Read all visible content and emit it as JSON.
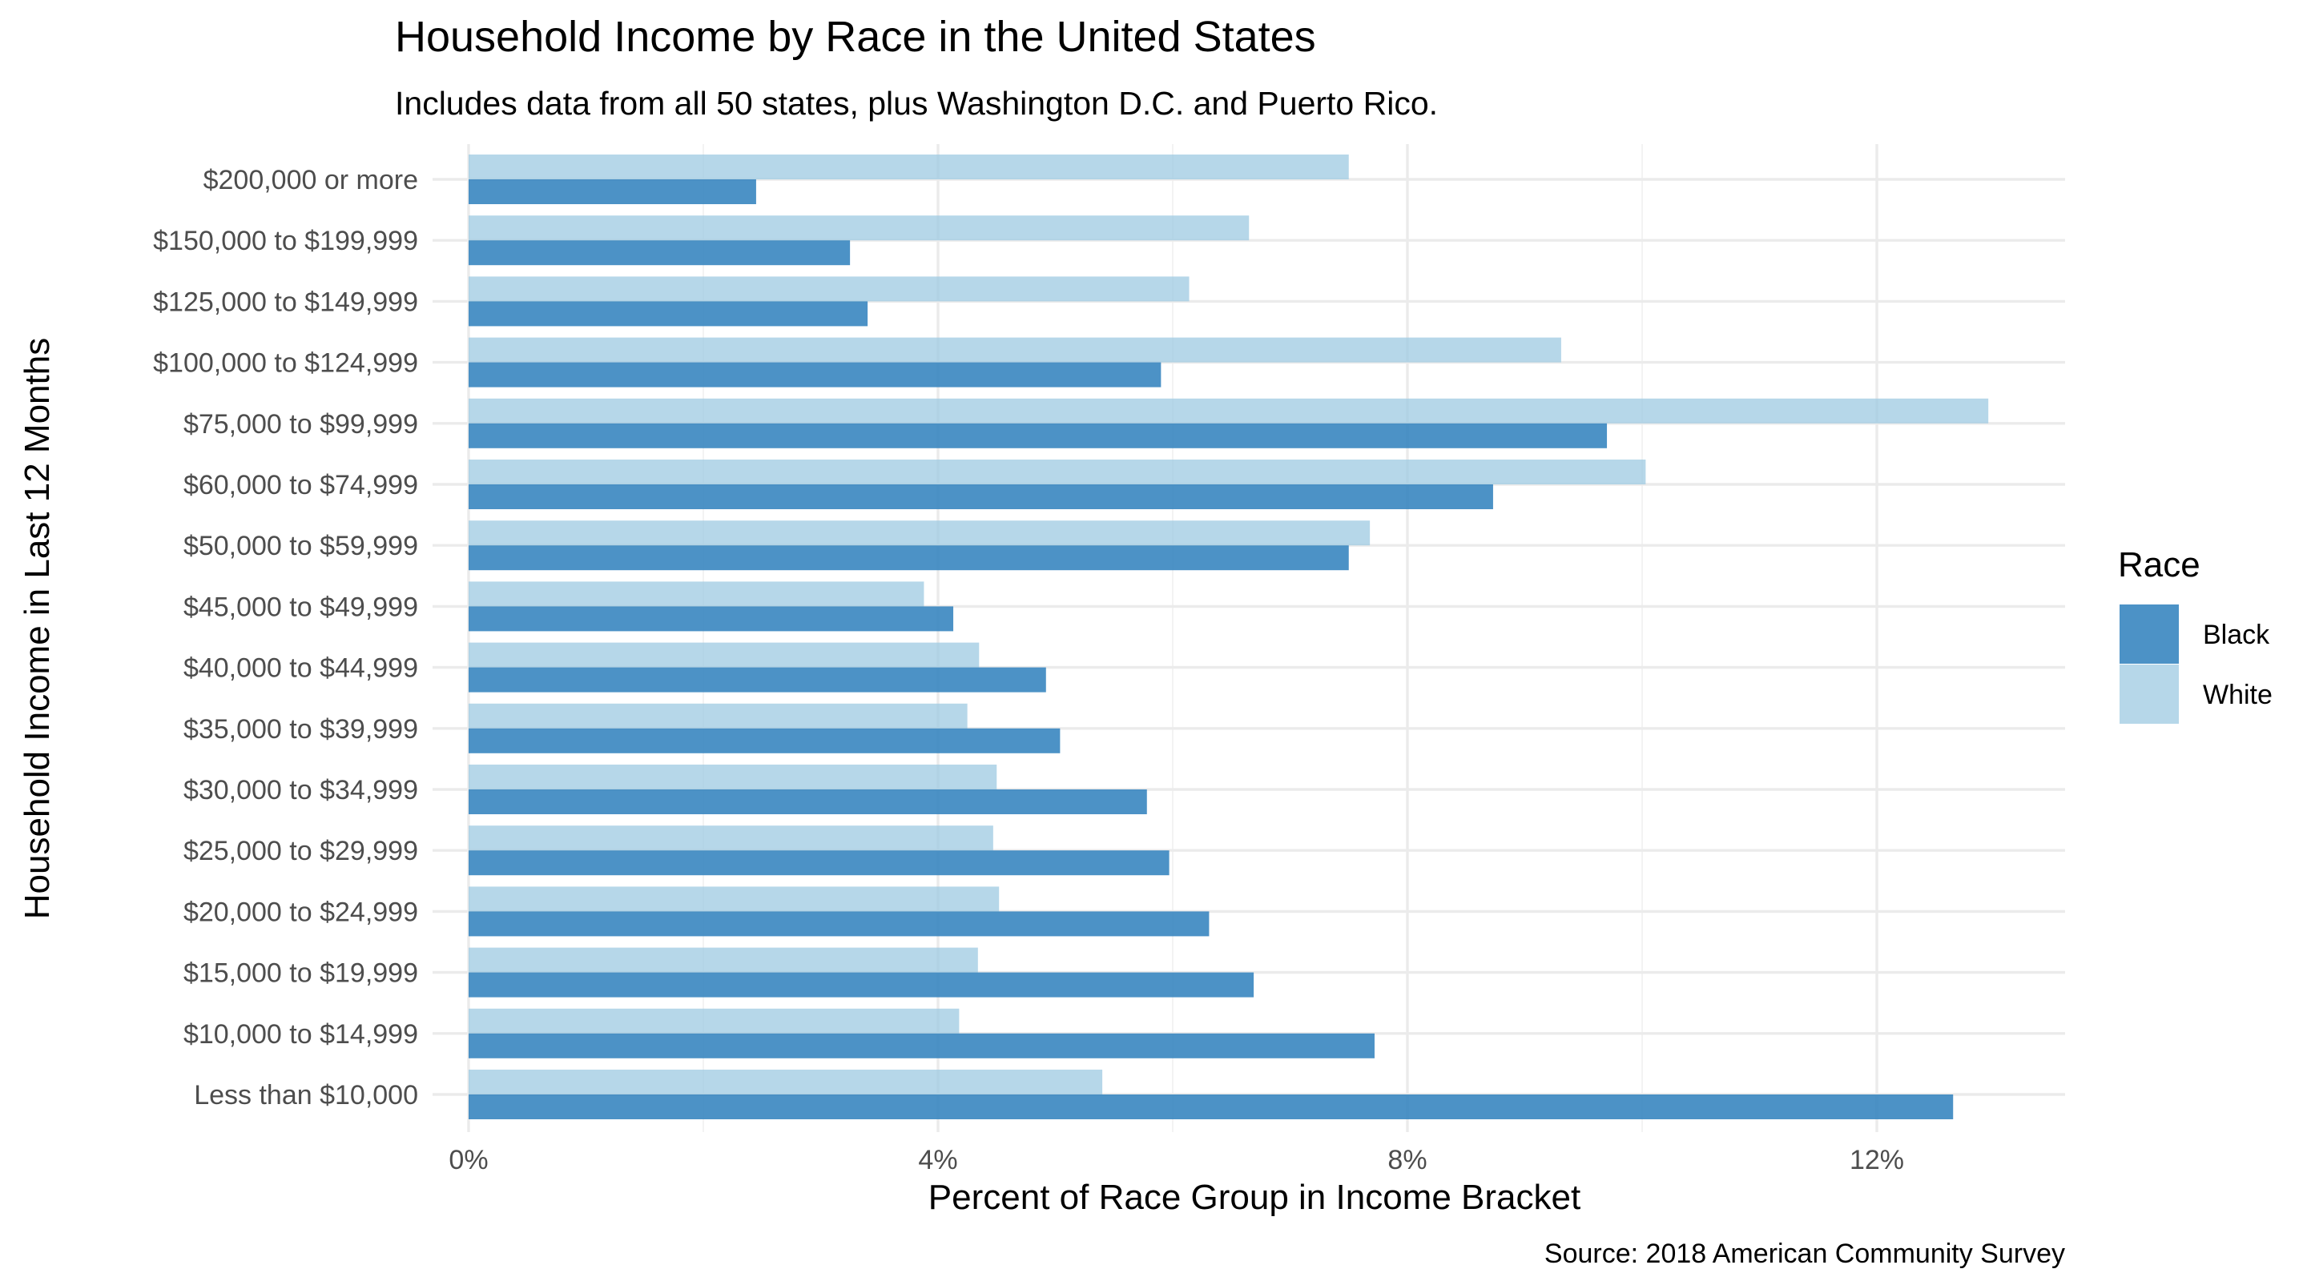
{
  "chart_data": {
    "type": "bar",
    "orientation": "horizontal",
    "title": "Household Income by Race in the United States",
    "subtitle": "Includes data from all 50 states, plus Washington D.C. and Puerto Rico.",
    "xlabel": "Percent of Race Group in Income Bracket",
    "ylabel": "Household Income in Last 12 Months",
    "caption": "Source: 2018 American Community Survey",
    "xlim": [
      0,
      13.6
    ],
    "x_ticks": [
      0,
      4,
      8,
      12
    ],
    "x_tick_labels": [
      "0%",
      "4%",
      "8%",
      "12%"
    ],
    "grid": true,
    "legend": {
      "title": "Race",
      "position": "right"
    },
    "categories": [
      "$200,000 or more",
      "$150,000 to $199,999",
      "$125,000 to $149,999",
      "$100,000 to $124,999",
      "$75,000 to $99,999",
      "$60,000 to $74,999",
      "$50,000 to $59,999",
      "$45,000 to $49,999",
      "$40,000 to $44,999",
      "$35,000 to $39,999",
      "$30,000 to $34,999",
      "$25,000 to $29,999",
      "$20,000 to $24,999",
      "$15,000 to $19,999",
      "$10,000 to $14,999",
      "Less than $10,000"
    ],
    "series": [
      {
        "name": "Black",
        "color": "#3182bd",
        "values": [
          2.45,
          3.25,
          3.4,
          5.9,
          9.7,
          8.73,
          7.5,
          4.13,
          4.92,
          5.04,
          5.78,
          5.97,
          6.31,
          6.69,
          7.72,
          12.65
        ]
      },
      {
        "name": "White",
        "color": "#9ecae1",
        "values": [
          7.5,
          6.65,
          6.14,
          9.31,
          12.95,
          10.03,
          7.68,
          3.88,
          4.35,
          4.25,
          4.5,
          4.47,
          4.52,
          4.34,
          4.18,
          5.4
        ]
      }
    ]
  }
}
